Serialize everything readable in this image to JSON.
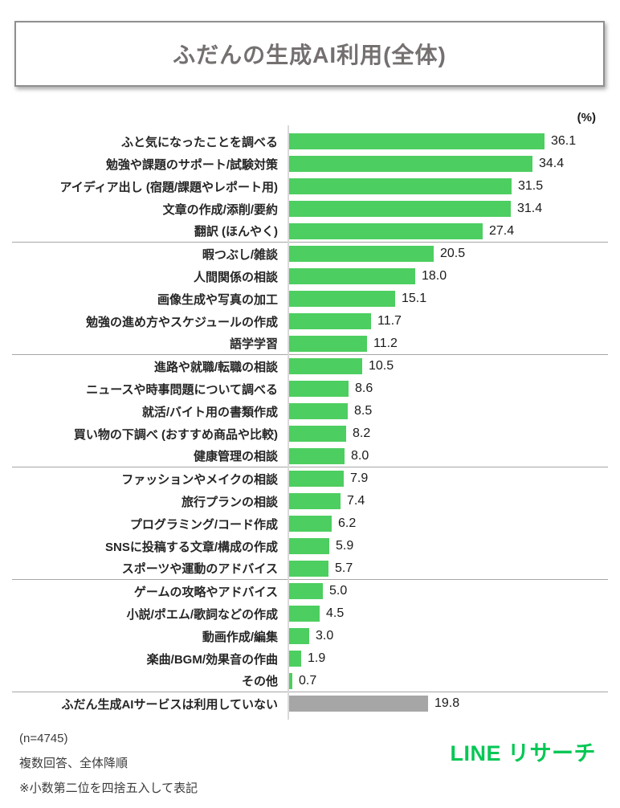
{
  "title": "ふだんの生成AI利用(全体)",
  "chart_data": {
    "type": "bar",
    "orientation": "horizontal",
    "unit_label": "(%)",
    "xlim": [
      0,
      40
    ],
    "grid": false,
    "legend": "none",
    "categories": [
      "ふと気になったことを調べる",
      "勉強や課題のサポート/試験対策",
      "アイディア出し (宿題/課題やレポート用)",
      "文章の作成/添削/要約",
      "翻訳 (ほんやく)",
      "暇つぶし/雑談",
      "人間関係の相談",
      "画像生成や写真の加工",
      "勉強の進め方やスケジュールの作成",
      "語学学習",
      "進路や就職/転職の相談",
      "ニュースや時事問題について調べる",
      "就活/バイト用の書類作成",
      "買い物の下調べ (おすすめ商品や比較)",
      "健康管理の相談",
      "ファッションやメイクの相談",
      "旅行プランの相談",
      "プログラミング/コード作成",
      "SNSに投稿する文章/構成の作成",
      "スポーツや運動のアドバイス",
      "ゲームの攻略やアドバイス",
      "小説/ポエム/歌詞などの作成",
      "動画作成/編集",
      "楽曲/BGM/効果音の作曲",
      "その他",
      "ふだん生成AIサービスは利用していない"
    ],
    "values": [
      36.1,
      34.4,
      31.5,
      31.4,
      27.4,
      20.5,
      18.0,
      15.1,
      11.7,
      11.2,
      10.5,
      8.6,
      8.5,
      8.2,
      8.0,
      7.9,
      7.4,
      6.2,
      5.9,
      5.7,
      5.0,
      4.5,
      3.0,
      1.9,
      0.7,
      19.8
    ],
    "value_labels": [
      "36.1",
      "34.4",
      "31.5",
      "31.4",
      "27.4",
      "20.5",
      "18.0",
      "15.1",
      "11.7",
      "11.2",
      "10.5",
      "8.6",
      "8.5",
      "8.2",
      "8.0",
      "7.9",
      "7.4",
      "6.2",
      "5.9",
      "5.7",
      "5.0",
      "4.5",
      "3.0",
      "1.9",
      "0.7",
      "19.8"
    ],
    "group_separators_after": [
      5,
      10,
      15,
      20,
      25
    ],
    "gray_indices": [
      25
    ],
    "colors": {
      "default_bar": "#4dce60",
      "not_using_bar": "#a6a6a6",
      "axis": "#d9d9d9",
      "separator": "#a6a6a6"
    }
  },
  "footer": {
    "sample_size": "(n=4745)",
    "note_multi": "複数回答、全体降順",
    "note_round": "※小数第二位を四捨五入して表記",
    "logo": "LINE リサーチ"
  }
}
